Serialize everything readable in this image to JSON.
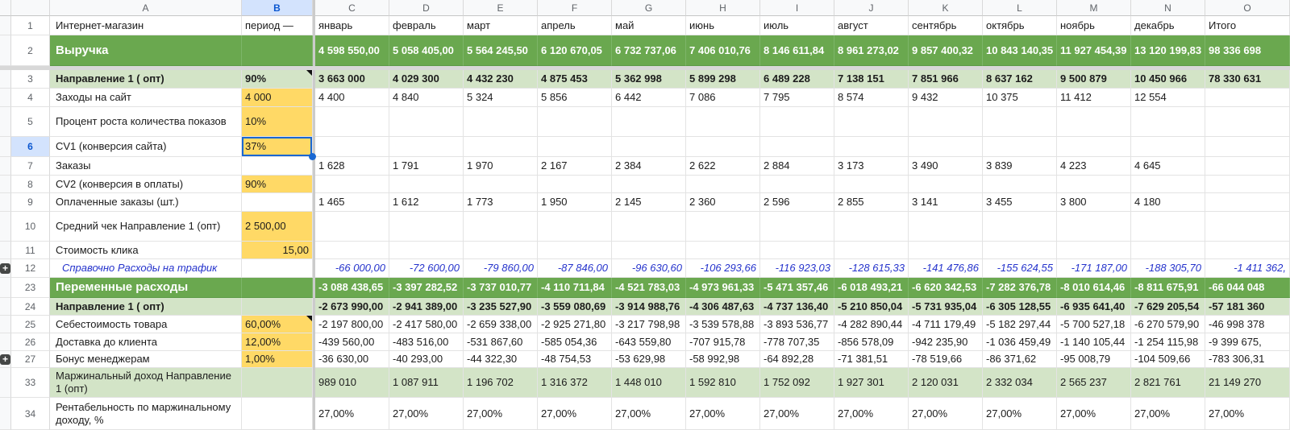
{
  "sheet": {
    "app": "spreadsheet",
    "frozen": {
      "after_row": "2",
      "after_column": "B"
    },
    "selected_cell": {
      "column": "B",
      "row": "6",
      "value": "37%"
    },
    "colors": {
      "section_green": "#6aa84f",
      "light_green": "#d3e4c7",
      "input_yellow": "#ffd966",
      "note_blue": "#2533cc",
      "selection_blue": "#1967d2",
      "header_highlight": "#d3e3fd",
      "header_highlight_text": "#0b57d0"
    },
    "columns": [
      "A",
      "B",
      "C",
      "D",
      "E",
      "F",
      "G",
      "H",
      "I",
      "J",
      "K",
      "L",
      "M",
      "N",
      "O"
    ],
    "rows": [
      {
        "num": "1",
        "a": "Интернет-магазин",
        "b": "период —",
        "cells": [
          "январь",
          "февраль",
          "март",
          "апрель",
          "май",
          "июнь",
          "июль",
          "август",
          "сентябрь",
          "октябрь",
          "ноябрь",
          "декабрь",
          "Итого"
        ]
      },
      {
        "num": "2",
        "a": "Выручка",
        "b": "",
        "style": "section",
        "cells": [
          "4 598 550,00",
          "5 058 405,00",
          "5 564 245,50",
          "6 120 670,05",
          "6 732 737,06",
          "7 406 010,76",
          "8 146 611,84",
          "8 961 273,02",
          "9 857 400,32",
          "10 843 140,35",
          "11 927 454,39",
          "13 120 199,83",
          "98 336 698"
        ]
      },
      {
        "num": "3",
        "a": "Направление 1 ( опт)",
        "b": "90%",
        "style": "subsection",
        "b_marker": true,
        "cells": [
          "3 663 000",
          "4 029 300",
          "4 432 230",
          "4 875 453",
          "5 362 998",
          "5 899 298",
          "6 489 228",
          "7 138 151",
          "7 851 966",
          "8 637 162",
          "9 500 879",
          "10 450 966",
          "78 330 631"
        ]
      },
      {
        "num": "4",
        "a": "Заходы на сайт",
        "b": "4 000",
        "b_bg": true,
        "cells": [
          "4 400",
          "4 840",
          "5 324",
          "5 856",
          "6 442",
          "7 086",
          "7 795",
          "8 574",
          "9 432",
          "10 375",
          "11 412",
          "12 554",
          ""
        ]
      },
      {
        "num": "5",
        "a": "Процент роста количества показов",
        "b": "10%",
        "b_bg": true,
        "cells": [
          "",
          "",
          "",
          "",
          "",
          "",
          "",
          "",
          "",
          "",
          "",
          "",
          ""
        ]
      },
      {
        "num": "6",
        "a": "CV1 (конверсия сайта)",
        "b": "37%",
        "b_bg": true,
        "b_selected": true,
        "header_selected": true,
        "cells": [
          "",
          "",
          "",
          "",
          "",
          "",
          "",
          "",
          "",
          "",
          "",
          "",
          ""
        ]
      },
      {
        "num": "7",
        "a": "Заказы",
        "b": "",
        "cells": [
          "1 628",
          "1 791",
          "1 970",
          "2 167",
          "2 384",
          "2 622",
          "2 884",
          "3 173",
          "3 490",
          "3 839",
          "4 223",
          "4 645",
          ""
        ]
      },
      {
        "num": "8",
        "a": "CV2 (конверсия в оплаты)",
        "b": "90%",
        "b_bg": true,
        "cells": [
          "",
          "",
          "",
          "",
          "",
          "",
          "",
          "",
          "",
          "",
          "",
          "",
          ""
        ]
      },
      {
        "num": "9",
        "a": "Оплаченные заказы (шт.)",
        "b": "",
        "cells": [
          "1 465",
          "1 612",
          "1 773",
          "1 950",
          "2 145",
          "2 360",
          "2 596",
          "2 855",
          "3 141",
          "3 455",
          "3 800",
          "4 180",
          ""
        ]
      },
      {
        "num": "10",
        "a": "Средний чек  Направление 1 (опт)",
        "b": "2 500,00",
        "b_bg": true,
        "cells": [
          "",
          "",
          "",
          "",
          "",
          "",
          "",
          "",
          "",
          "",
          "",
          "",
          ""
        ]
      },
      {
        "num": "11",
        "a": "Стоимость клика",
        "b": "15,00",
        "b_bg": true,
        "b_align": "right",
        "cells": [
          "",
          "",
          "",
          "",
          "",
          "",
          "",
          "",
          "",
          "",
          "",
          "",
          ""
        ]
      },
      {
        "num": "12",
        "a": "Справочно Расходы на трафик",
        "b": "",
        "style": "note",
        "group_button": "+",
        "cells": [
          "-66 000,00",
          "-72 600,00",
          "-79 860,00",
          "-87 846,00",
          "-96 630,60",
          "-106 293,66",
          "-116 923,03",
          "-128 615,33",
          "-141 476,86",
          "-155 624,55",
          "-171 187,00",
          "-188 305,70",
          "-1 411 362,"
        ]
      },
      {
        "num": "23",
        "a": "Переменные расходы",
        "b": "",
        "style": "section",
        "cells": [
          "-3 088 438,65",
          "-3 397 282,52",
          "-3 737 010,77",
          "-4 110 711,84",
          "-4 521 783,03",
          "-4 973 961,33",
          "-5 471 357,46",
          "-6 018 493,21",
          "-6 620 342,53",
          "-7 282 376,78",
          "-8 010 614,46",
          "-8 811 675,91",
          "-66 044 048"
        ]
      },
      {
        "num": "24",
        "a": "Направление 1 ( опт)",
        "b": "",
        "style": "subsection",
        "cells": [
          "-2 673 990,00",
          "-2 941 389,00",
          "-3 235 527,90",
          "-3 559 080,69",
          "-3 914 988,76",
          "-4 306 487,63",
          "-4 737 136,40",
          "-5 210 850,04",
          "-5 731 935,04",
          "-6 305 128,55",
          "-6 935 641,40",
          "-7 629 205,54",
          "-57 181 360"
        ]
      },
      {
        "num": "25",
        "a": "Себестоимость товара",
        "b": "60,00%",
        "b_bg": true,
        "b_marker": true,
        "cells": [
          "-2 197 800,00",
          "-2 417 580,00",
          "-2 659 338,00",
          "-2 925 271,80",
          "-3 217 798,98",
          "-3 539 578,88",
          "-3 893 536,77",
          "-4 282 890,44",
          "-4 711 179,49",
          "-5 182 297,44",
          "-5 700 527,18",
          "-6 270 579,90",
          "-46 998 378"
        ]
      },
      {
        "num": "26",
        "a": "Доставка до клиента",
        "b": "12,00%",
        "b_bg": true,
        "cells": [
          "-439 560,00",
          "-483 516,00",
          "-531 867,60",
          "-585 054,36",
          "-643 559,80",
          "-707 915,78",
          "-778 707,35",
          "-856 578,09",
          "-942 235,90",
          "-1 036 459,49",
          "-1 140 105,44",
          "-1 254 115,98",
          "-9 399 675,"
        ]
      },
      {
        "num": "27",
        "a": "Бонус менеджерам",
        "b": "1,00%",
        "b_bg": true,
        "group_button": "+",
        "cells": [
          "-36 630,00",
          "-40 293,00",
          "-44 322,30",
          "-48 754,53",
          "-53 629,98",
          "-58 992,98",
          "-64 892,28",
          "-71 381,51",
          "-78 519,66",
          "-86 371,62",
          "-95 008,79",
          "-104 509,66",
          "-783 306,31"
        ]
      },
      {
        "num": "33",
        "a": "Маржинальный доход Направление 1 (опт)",
        "b": "",
        "style": "result",
        "cells": [
          "989 010",
          "1 087 911",
          "1 196 702",
          "1 316 372",
          "1 448 010",
          "1 592 810",
          "1 752 092",
          "1 927 301",
          "2 120 031",
          "2 332 034",
          "2 565 237",
          "2 821 761",
          "21 149 270"
        ]
      },
      {
        "num": "34",
        "a": "Рентабельность по маржинальному доходу, %",
        "b": "",
        "cells": [
          "27,00%",
          "27,00%",
          "27,00%",
          "27,00%",
          "27,00%",
          "27,00%",
          "27,00%",
          "27,00%",
          "27,00%",
          "27,00%",
          "27,00%",
          "27,00%",
          "27,00%"
        ]
      }
    ]
  }
}
